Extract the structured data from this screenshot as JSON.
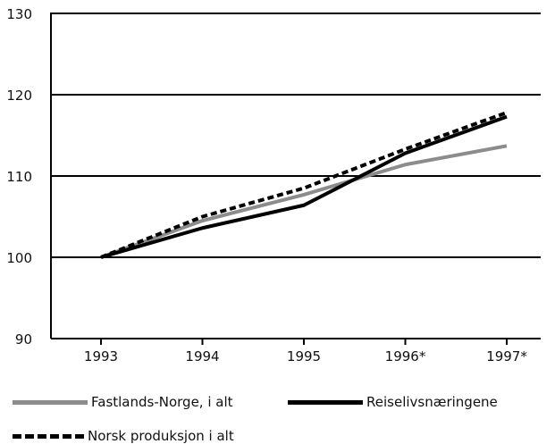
{
  "chart_data": {
    "type": "line",
    "title": "",
    "xlabel": "",
    "ylabel": "",
    "categories": [
      "1993",
      "1994",
      "1995",
      "1996*",
      "1997*"
    ],
    "ylim": [
      90,
      130
    ],
    "yticks": [
      90,
      100,
      110,
      120,
      130
    ],
    "grid": "horizontal",
    "legend_position": "bottom",
    "series": [
      {
        "name": "Fastlands-Norge, i alt",
        "values": [
          100,
          104.5,
          107.7,
          111.4,
          113.7
        ],
        "color": "#8c8c8c",
        "style": "solid"
      },
      {
        "name": "Reiselivsnæringene",
        "values": [
          100,
          103.6,
          106.4,
          112.8,
          117.3
        ],
        "color": "#000000",
        "style": "solid"
      },
      {
        "name": "Norsk produksjon i alt",
        "values": [
          100,
          105.0,
          108.5,
          113.3,
          117.8
        ],
        "color": "#000000",
        "style": "dashed"
      }
    ]
  }
}
